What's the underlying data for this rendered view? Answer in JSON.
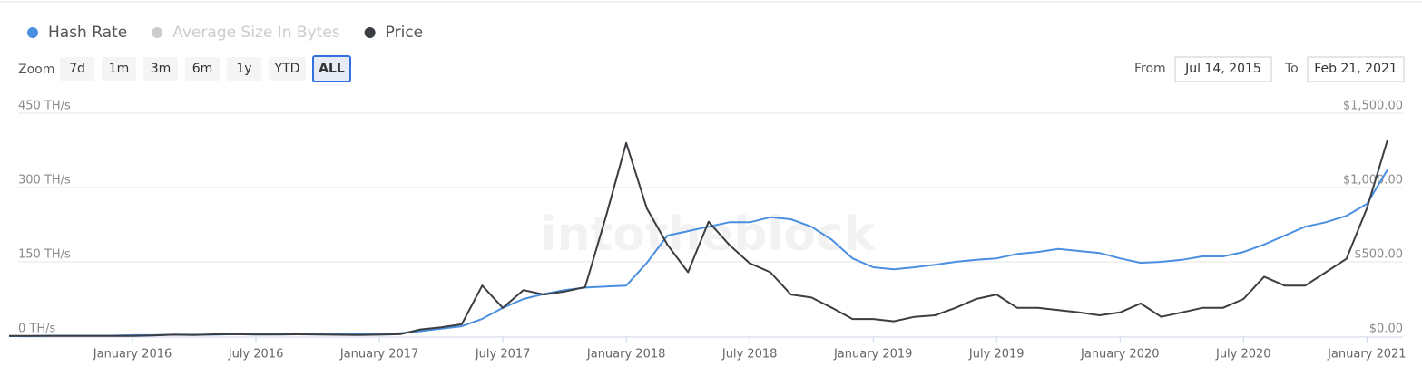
{
  "chart_data": {
    "type": "line",
    "legend": "top-left",
    "watermark": "intotheblock",
    "zoom": {
      "label": "Zoom",
      "buttons": [
        "7d",
        "1m",
        "3m",
        "6m",
        "1y",
        "YTD",
        "ALL"
      ],
      "active": 6
    },
    "range": {
      "from_label": "From",
      "from": "Jul 14, 2015",
      "to_label": "To",
      "to": "Feb 21, 2021"
    },
    "x": [
      "2015-07",
      "2015-08",
      "2015-09",
      "2015-10",
      "2015-11",
      "2015-12",
      "2016-01",
      "2016-02",
      "2016-03",
      "2016-04",
      "2016-05",
      "2016-06",
      "2016-07",
      "2016-08",
      "2016-09",
      "2016-10",
      "2016-11",
      "2016-12",
      "2017-01",
      "2017-02",
      "2017-03",
      "2017-04",
      "2017-05",
      "2017-06",
      "2017-07",
      "2017-08",
      "2017-09",
      "2017-10",
      "2017-11",
      "2017-12",
      "2018-01",
      "2018-02",
      "2018-03",
      "2018-04",
      "2018-05",
      "2018-06",
      "2018-07",
      "2018-08",
      "2018-09",
      "2018-10",
      "2018-11",
      "2018-12",
      "2019-01",
      "2019-02",
      "2019-03",
      "2019-04",
      "2019-05",
      "2019-06",
      "2019-07",
      "2019-08",
      "2019-09",
      "2019-10",
      "2019-11",
      "2019-12",
      "2020-01",
      "2020-02",
      "2020-03",
      "2020-04",
      "2020-05",
      "2020-06",
      "2020-07",
      "2020-08",
      "2020-09",
      "2020-10",
      "2020-11",
      "2020-12",
      "2021-01",
      "2021-02"
    ],
    "xlim": [
      "2015-07",
      "2021-02"
    ],
    "xticks": [
      {
        "value": "2016-01",
        "label": "January 2016"
      },
      {
        "value": "2016-07",
        "label": "July 2016"
      },
      {
        "value": "2017-01",
        "label": "January 2017"
      },
      {
        "value": "2017-07",
        "label": "July 2017"
      },
      {
        "value": "2018-01",
        "label": "January 2018"
      },
      {
        "value": "2018-07",
        "label": "July 2018"
      },
      {
        "value": "2019-01",
        "label": "January 2019"
      },
      {
        "value": "2019-07",
        "label": "July 2019"
      },
      {
        "value": "2020-01",
        "label": "January 2020"
      },
      {
        "value": "2020-07",
        "label": "July 2020"
      },
      {
        "value": "2021-01",
        "label": "January 2021"
      }
    ],
    "ylim": [
      0,
      450
    ],
    "yticks": [
      {
        "value": 0,
        "label": "0 TH/s"
      },
      {
        "value": 150,
        "label": "150 TH/s"
      },
      {
        "value": 300,
        "label": "300 TH/s"
      },
      {
        "value": 450,
        "label": "450 TH/s"
      }
    ],
    "y2lim": [
      0,
      1500
    ],
    "y2ticks": [
      {
        "value": 0,
        "label": "$0.00"
      },
      {
        "value": 500,
        "label": "$500.00"
      },
      {
        "value": 1000,
        "label": "$1,000.00"
      },
      {
        "value": 1500,
        "label": "$1,500.00"
      }
    ],
    "grid": true,
    "series": [
      {
        "name": "Hash Rate",
        "color": "#4a8fe0",
        "axis": "y",
        "values": [
          0,
          0,
          1,
          1,
          1,
          1,
          2,
          2,
          3,
          3,
          3,
          4,
          4,
          4,
          4,
          4,
          4,
          4,
          4,
          6,
          10,
          15,
          20,
          35,
          57,
          75,
          85,
          93,
          98,
          100,
          102,
          148,
          203,
          212,
          221,
          230,
          230,
          240,
          236,
          221,
          194,
          157,
          139,
          135,
          139,
          144,
          150,
          154,
          157,
          166,
          170,
          176,
          172,
          168,
          157,
          148,
          150,
          154,
          161,
          161,
          170,
          185,
          203,
          221,
          230,
          243,
          267,
          336
        ]
      },
      {
        "name": "Average Size In Bytes",
        "color": "#cccccc",
        "visible": false
      },
      {
        "name": "Price",
        "color": "#3a3d42",
        "axis": "y2",
        "values": [
          1,
          1,
          1,
          1,
          1,
          1,
          2,
          5,
          10,
          8,
          12,
          13,
          11,
          11,
          12,
          11,
          9,
          8,
          10,
          13,
          45,
          60,
          80,
          340,
          190,
          310,
          280,
          300,
          330,
          800,
          1300,
          860,
          615,
          430,
          770,
          615,
          490,
          430,
          280,
          260,
          190,
          115,
          115,
          100,
          130,
          140,
          190,
          250,
          280,
          190,
          190,
          175,
          160,
          140,
          160,
          220,
          130,
          160,
          190,
          190,
          250,
          400,
          340,
          340,
          430,
          520,
          860,
          1320
        ]
      }
    ]
  }
}
